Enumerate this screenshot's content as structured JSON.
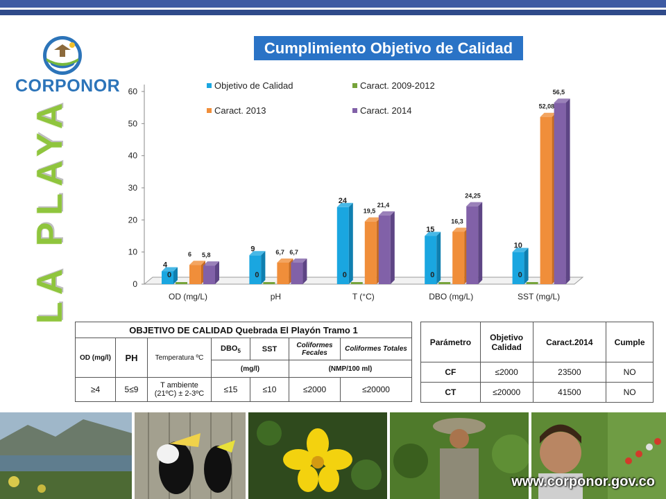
{
  "title": "Cumplimiento Objetivo de Calidad",
  "side_title": "LA PLAYA",
  "logo": {
    "text": "CORPONOR"
  },
  "website": "www.corponor.gov.co",
  "colors": {
    "obj": "#1aa6e0",
    "c0912": "#76a33a",
    "c2013": "#f08e3a",
    "c2014": "#8161a8",
    "title_bg": "#2a73c6",
    "side_title": "#8fc53d"
  },
  "chart_data": {
    "type": "bar",
    "categories": [
      "OD (mg/L)",
      "pH",
      "T (°C)",
      "DBO (mg/L)",
      "SST (mg/L)"
    ],
    "series": [
      {
        "name": "Objetivo de Calidad",
        "values": [
          4,
          9,
          24,
          15,
          10
        ],
        "labels": [
          "4",
          "9",
          "24",
          "15",
          "10"
        ]
      },
      {
        "name": "Caract. 2009-2012",
        "values": [
          0,
          0,
          0,
          0,
          0
        ],
        "labels": [
          "0",
          "0",
          "0",
          "0",
          "0"
        ]
      },
      {
        "name": "Caract. 2013",
        "values": [
          6,
          6.7,
          19.5,
          16.3,
          52.08
        ],
        "labels": [
          "6",
          "6,7",
          "19,5",
          "16,3",
          "52,08"
        ]
      },
      {
        "name": "Caract. 2014",
        "values": [
          5.8,
          6.7,
          21.4,
          24.25,
          56.5
        ],
        "labels": [
          "5,8",
          "6,7",
          "21,4",
          "24,25",
          "56,5"
        ]
      }
    ],
    "yticks": [
      "0",
      "10",
      "20",
      "30",
      "40",
      "50",
      "60"
    ],
    "ylim": [
      0,
      60
    ],
    "legend": "top"
  },
  "table1": {
    "title": "OBJETIVO DE CALIDAD Quebrada El Playón Tramo 1",
    "headers": {
      "od": "OD (mg/l)",
      "ph": "PH",
      "temp": "Temperatura ºC",
      "dbo": "DBO",
      "dbo_sub": "5",
      "sst": "SST",
      "cf": "Coliformes Fecales",
      "ct": "Coliformes Totales"
    },
    "units": {
      "mgl": "(mg/l)",
      "nmp": "(NMP/100 ml)"
    },
    "values": {
      "od": "≥4",
      "ph": "5≤9",
      "temp": "T ambiente (21ºC) ± 2-3ºC",
      "dbo": "≤15",
      "sst": "≤10",
      "cf": "≤2000",
      "ct": "≤20000"
    }
  },
  "table2": {
    "headers": [
      "Parámetro",
      "Objetivo Calidad",
      "Caract.2014",
      "Cumple"
    ],
    "rows": [
      [
        "CF",
        "≤2000",
        "23500",
        "NO"
      ],
      [
        "CT",
        "≤20000",
        "41500",
        "NO"
      ]
    ]
  }
}
